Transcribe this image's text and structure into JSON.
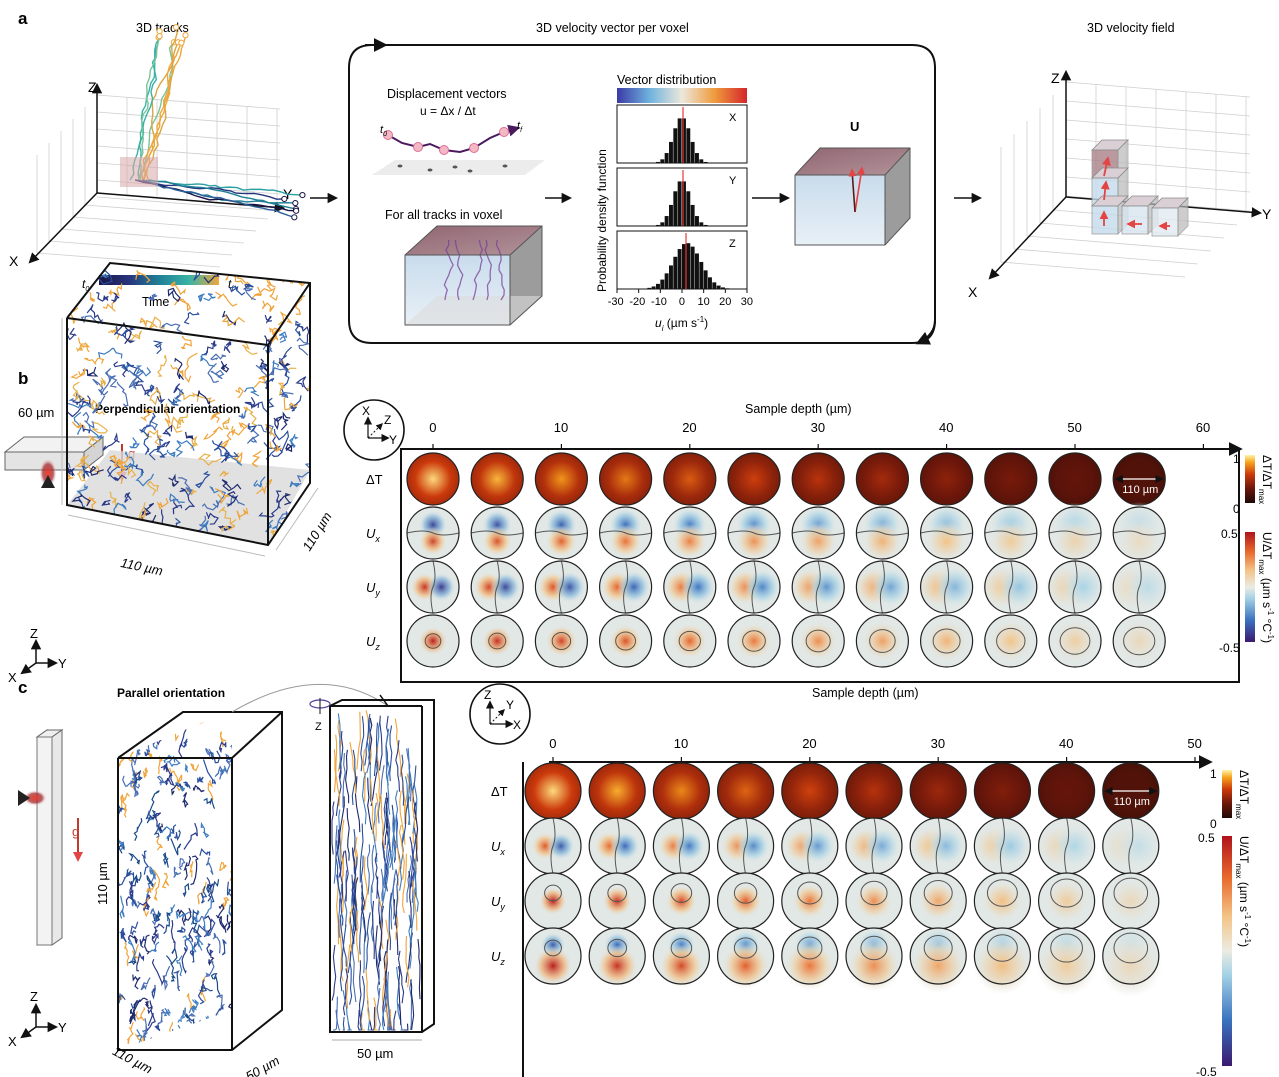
{
  "panels": {
    "a": {
      "letter": "a",
      "tracks_title": "3D tracks",
      "velocity_title": "3D velocity vector per voxel",
      "field_title": "3D velocity field",
      "axis_z": "Z",
      "axis_y": "Y",
      "axis_x": "X",
      "time_label": "Time",
      "t0": "t",
      "t0_sub": "0",
      "tf": "t",
      "tf_sub": "f",
      "displacement_title": "Displacement vectors",
      "displacement_formula": "u = Δx / Δt",
      "all_tracks": "For all tracks in voxel",
      "vector_distribution": "Vector distribution",
      "pdf_label": "Probability density function",
      "hist_labels": [
        "X",
        "Y",
        "Z"
      ],
      "hist_ticks": [
        "-30",
        "-20",
        "-10",
        "0",
        "10",
        "20",
        "30"
      ],
      "ui_label": "u",
      "ui_sub": "i",
      "ui_unit": " (µm s",
      "ui_sup": "-1",
      "ui_close": ")",
      "U_label": "U"
    },
    "b": {
      "letter": "b",
      "title": "Perpendicular orientation",
      "g": "g",
      "dim_depth": "60 µm",
      "dim_x": "110 µm",
      "dim_y": "110 µm",
      "coord": [
        "Z",
        "X",
        "Y"
      ],
      "badge": [
        "X",
        "Z",
        "Y"
      ],
      "depth_title": "Sample depth (µm)",
      "depth_ticks": [
        "0",
        "10",
        "20",
        "30",
        "40",
        "50",
        "60"
      ],
      "rows": [
        "ΔT",
        "U",
        "U",
        "U"
      ],
      "row_subs": [
        "",
        "x",
        "y",
        "z"
      ],
      "scale_label": "110 µm",
      "cbar_top": [
        "1",
        "0"
      ],
      "cbar_top_label": "ΔT/ΔT",
      "cbar_top_sub": "max",
      "cbar_bottom": [
        "0.5",
        "-0.5"
      ],
      "cbar_bottom_label": "U/ΔT",
      "cbar_bottom_sub": "max",
      "cbar_bottom_unit": " (µm s",
      "cbar_bottom_sup": "-1",
      "cbar_bottom_unit2": " °C",
      "cbar_bottom_sup2": "-1",
      "cbar_bottom_close": ")"
    },
    "c": {
      "letter": "c",
      "title": "Parallel orientation",
      "g": "g",
      "dim_height": "110 µm",
      "dim_x": "110 µm",
      "dim_y": "50 µm",
      "dim_side": "50 µm",
      "rot_axis": "Z",
      "coord": [
        "Z",
        "X",
        "Y"
      ],
      "badge": [
        "Z",
        "Y",
        "X"
      ],
      "depth_title": "Sample depth (µm)",
      "depth_ticks": [
        "0",
        "10",
        "20",
        "30",
        "40",
        "50"
      ],
      "rows": [
        "ΔT",
        "U",
        "U",
        "U"
      ],
      "row_subs": [
        "",
        "x",
        "y",
        "z"
      ],
      "scale_label": "110 µm",
      "cbar_top": [
        "1",
        "0"
      ],
      "cbar_top_label": "ΔT/ΔT",
      "cbar_top_sub": "max",
      "cbar_bottom": [
        "0.5",
        "-0.5"
      ],
      "cbar_bottom_label": "U/ΔT",
      "cbar_bottom_sub": "max",
      "cbar_bottom_unit": " (µm s",
      "cbar_bottom_sup": "-1",
      "cbar_bottom_unit2": " °C",
      "cbar_bottom_sup2": "-1",
      "cbar_bottom_close": ")"
    }
  }
}
